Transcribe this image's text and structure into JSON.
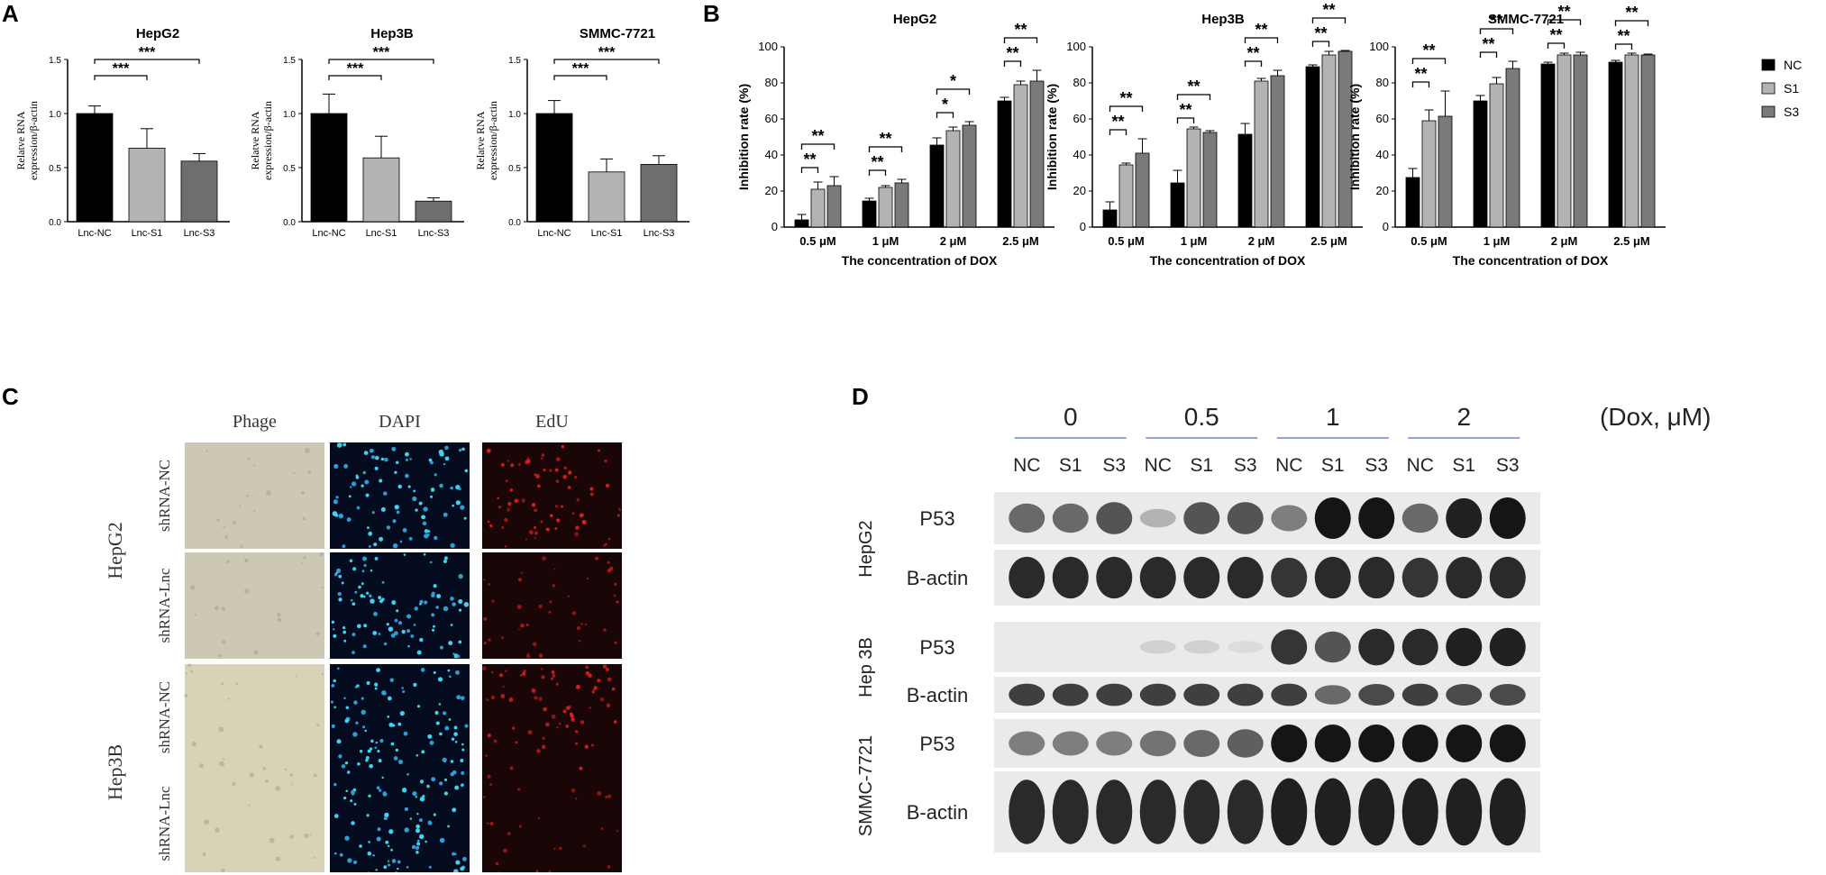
{
  "panels": {
    "A": {
      "letter": "A",
      "ylabel_line1": "Relatve RNA",
      "ylabel_line2": "expression/β-actin",
      "charts": [
        {
          "title": "HepG2",
          "categories": [
            "Lnc-NC",
            "Lnc-S1",
            "Lnc-S3"
          ],
          "values": [
            1.0,
            0.68,
            0.56
          ],
          "errors": [
            0.07,
            0.18,
            0.07
          ],
          "ylim": [
            0,
            1.5
          ],
          "yticks": [
            "0.0",
            "0.5",
            "1.0",
            "1.5"
          ],
          "sig": [
            "***",
            "***"
          ]
        },
        {
          "title": "Hep3B",
          "categories": [
            "Lnc-NC",
            "Lnc-S1",
            "Lnc-S3"
          ],
          "values": [
            1.0,
            0.59,
            0.19
          ],
          "errors": [
            0.18,
            0.2,
            0.03
          ],
          "ylim": [
            0,
            1.5
          ],
          "yticks": [
            "0.0",
            "0.5",
            "1.0",
            "1.5"
          ],
          "sig": [
            "***",
            "***"
          ]
        },
        {
          "title": "SMMC-7721",
          "categories": [
            "Lnc-NC",
            "Lnc-S1",
            "Lnc-S3"
          ],
          "values": [
            1.0,
            0.46,
            0.53
          ],
          "errors": [
            0.12,
            0.12,
            0.08
          ],
          "ylim": [
            0,
            1.5
          ],
          "yticks": [
            "0.0",
            "0.5",
            "1.0",
            "1.5"
          ],
          "sig": [
            "***",
            "***"
          ]
        }
      ]
    },
    "B": {
      "letter": "B",
      "xlabel": "The concentration of DOX",
      "ylabel": "Inhibition rate (%)",
      "categories": [
        "0.5 μM",
        "1 μM",
        "2 μM",
        "2.5 μM"
      ],
      "legend": [
        {
          "label": "NC",
          "color": "#000000"
        },
        {
          "label": "S1",
          "color": "#b3b3b3"
        },
        {
          "label": "S3",
          "color": "#7a7a7a"
        }
      ],
      "charts": [
        {
          "title": "HepG2",
          "ylim": [
            0,
            100
          ],
          "yticks": [
            "0",
            "20",
            "40",
            "60",
            "80",
            "100"
          ],
          "series": [
            {
              "name": "NC",
              "values": [
                4,
                14.5,
                45.5,
                70
              ],
              "errors": [
                3,
                1.5,
                4,
                2
              ]
            },
            {
              "name": "S1",
              "values": [
                21,
                22,
                53.5,
                79
              ],
              "errors": [
                4,
                1,
                2,
                2
              ]
            },
            {
              "name": "S3",
              "values": [
                23,
                24.5,
                56.5,
                81
              ],
              "errors": [
                5,
                2,
                2,
                6
              ]
            }
          ],
          "sig": [
            [
              "**",
              "**"
            ],
            [
              "**",
              "**"
            ],
            [
              "*",
              "*"
            ],
            [
              "**",
              "**"
            ]
          ]
        },
        {
          "title": "Hep3B",
          "ylim": [
            0,
            100
          ],
          "yticks": [
            "0",
            "20",
            "40",
            "60",
            "80",
            "100"
          ],
          "series": [
            {
              "name": "NC",
              "values": [
                9.5,
                24.5,
                51.5,
                89
              ],
              "errors": [
                4.5,
                7,
                6,
                1
              ]
            },
            {
              "name": "S1",
              "values": [
                34.5,
                54.5,
                81,
                95.5
              ],
              "errors": [
                1,
                1,
                1.5,
                2
              ]
            },
            {
              "name": "S3",
              "values": [
                41,
                52.5,
                84,
                97.5
              ],
              "errors": [
                8,
                1,
                3,
                0.5
              ]
            }
          ],
          "sig": [
            [
              "**",
              "**"
            ],
            [
              "**",
              "**"
            ],
            [
              "**",
              "**"
            ],
            [
              "**",
              "**"
            ]
          ]
        },
        {
          "title": "SMMC-7721",
          "ylim": [
            0,
            100
          ],
          "yticks": [
            "0",
            "20",
            "40",
            "60",
            "80",
            "100"
          ],
          "series": [
            {
              "name": "NC",
              "values": [
                27.5,
                70,
                90.5,
                91.5
              ],
              "errors": [
                5,
                3,
                1,
                1
              ]
            },
            {
              "name": "S1",
              "values": [
                59,
                79.5,
                95.5,
                95.5
              ],
              "errors": [
                6,
                3.5,
                1,
                1
              ]
            },
            {
              "name": "S3",
              "values": [
                61.5,
                88,
                95.5,
                95.5
              ],
              "errors": [
                14,
                4,
                1.5,
                0.5
              ]
            }
          ],
          "sig": [
            [
              "**",
              "**"
            ],
            [
              "**",
              "**"
            ],
            [
              "**",
              "**"
            ],
            [
              "**",
              "**"
            ]
          ]
        }
      ]
    },
    "C": {
      "letter": "C",
      "columns": [
        "Phage",
        "DAPI",
        "EdU"
      ],
      "rows": [
        {
          "cell_line": "HepG2",
          "label": "shRNA-NC",
          "edu_intensity": 1.0
        },
        {
          "cell_line": "",
          "label": "shRNA-Lnc",
          "edu_intensity": 0.55
        },
        {
          "cell_line": "Hep3B",
          "label": "shRNA-NC",
          "edu_intensity": 0.95
        },
        {
          "cell_line": "",
          "label": "shRNA-Lnc",
          "edu_intensity": 0.35
        }
      ]
    },
    "D": {
      "letter": "D",
      "dose_groups": [
        "0",
        "0.5",
        "1",
        "2"
      ],
      "dose_unit": "(Dox, μM)",
      "lane_labels": [
        "NC",
        "S1",
        "S3",
        "NC",
        "S1",
        "S3",
        "NC",
        "S1",
        "S3",
        "NC",
        "S1",
        "S3"
      ],
      "cell_lines": [
        {
          "name": "HepG2",
          "blots": [
            {
              "label": "P53",
              "intensity": [
                0.6,
                0.6,
                0.7,
                0.25,
                0.7,
                0.7,
                0.5,
                1.0,
                1.0,
                0.6,
                0.95,
                1.0
              ]
            },
            {
              "label": "B-actin",
              "intensity": [
                0.9,
                0.9,
                0.9,
                0.9,
                0.9,
                0.9,
                0.85,
                0.9,
                0.9,
                0.85,
                0.9,
                0.9
              ]
            }
          ]
        },
        {
          "name": "Hep 3B",
          "blots": [
            {
              "label": "P53",
              "intensity": [
                0.0,
                0.0,
                0.0,
                0.1,
                0.1,
                0.05,
                0.85,
                0.7,
                0.9,
                0.9,
                0.95,
                0.95
              ]
            },
            {
              "label": "B-actin",
              "intensity": [
                0.8,
                0.8,
                0.8,
                0.8,
                0.8,
                0.8,
                0.8,
                0.6,
                0.75,
                0.8,
                0.75,
                0.75
              ]
            }
          ]
        },
        {
          "name": "SMMC-7721",
          "blots": [
            {
              "label": "P53",
              "intensity": [
                0.5,
                0.5,
                0.5,
                0.55,
                0.6,
                0.65,
                1.0,
                1.0,
                1.0,
                1.0,
                1.0,
                1.0
              ]
            },
            {
              "label": "B-actin",
              "intensity": [
                0.9,
                0.9,
                0.9,
                0.9,
                0.9,
                0.9,
                0.95,
                0.95,
                0.95,
                0.95,
                0.95,
                0.95
              ]
            }
          ]
        }
      ]
    }
  },
  "chart_data": [
    {
      "type": "bar",
      "title": "HepG2",
      "categories": [
        "Lnc-NC",
        "Lnc-S1",
        "Lnc-S3"
      ],
      "values": [
        1.0,
        0.68,
        0.56
      ],
      "ylabel": "Relatve RNA expression/β-actin",
      "ylim": [
        0,
        1.5
      ]
    },
    {
      "type": "bar",
      "title": "Hep3B",
      "categories": [
        "Lnc-NC",
        "Lnc-S1",
        "Lnc-S3"
      ],
      "values": [
        1.0,
        0.59,
        0.19
      ],
      "ylabel": "Relatve RNA expression/β-actin",
      "ylim": [
        0,
        1.5
      ]
    },
    {
      "type": "bar",
      "title": "SMMC-7721",
      "categories": [
        "Lnc-NC",
        "Lnc-S1",
        "Lnc-S3"
      ],
      "values": [
        1.0,
        0.46,
        0.53
      ],
      "ylabel": "Relatve RNA expression/β-actin",
      "ylim": [
        0,
        1.5
      ]
    },
    {
      "type": "bar",
      "title": "HepG2",
      "categories": [
        "0.5 μM",
        "1 μM",
        "2 μM",
        "2.5 μM"
      ],
      "series": [
        {
          "name": "NC",
          "values": [
            4,
            14.5,
            45.5,
            70
          ]
        },
        {
          "name": "S1",
          "values": [
            21,
            22,
            53.5,
            79
          ]
        },
        {
          "name": "S3",
          "values": [
            23,
            24.5,
            56.5,
            81
          ]
        }
      ],
      "xlabel": "The concentration of DOX",
      "ylabel": "Inhibition rate (%)",
      "ylim": [
        0,
        100
      ]
    },
    {
      "type": "bar",
      "title": "Hep3B",
      "categories": [
        "0.5 μM",
        "1 μM",
        "2 μM",
        "2.5 μM"
      ],
      "series": [
        {
          "name": "NC",
          "values": [
            9.5,
            24.5,
            51.5,
            89
          ]
        },
        {
          "name": "S1",
          "values": [
            34.5,
            54.5,
            81,
            95.5
          ]
        },
        {
          "name": "S3",
          "values": [
            41,
            52.5,
            84,
            97.5
          ]
        }
      ],
      "xlabel": "The concentration of DOX",
      "ylabel": "Inhibition rate (%)",
      "ylim": [
        0,
        100
      ]
    },
    {
      "type": "bar",
      "title": "SMMC-7721",
      "categories": [
        "0.5 μM",
        "1 μM",
        "2 μM",
        "2.5 μM"
      ],
      "series": [
        {
          "name": "NC",
          "values": [
            27.5,
            70,
            90.5,
            91.5
          ]
        },
        {
          "name": "S1",
          "values": [
            59,
            79.5,
            95.5,
            95.5
          ]
        },
        {
          "name": "S3",
          "values": [
            61.5,
            88,
            95.5,
            95.5
          ]
        }
      ],
      "xlabel": "The concentration of DOX",
      "ylabel": "Inhibition rate (%)",
      "ylim": [
        0,
        100
      ]
    }
  ]
}
